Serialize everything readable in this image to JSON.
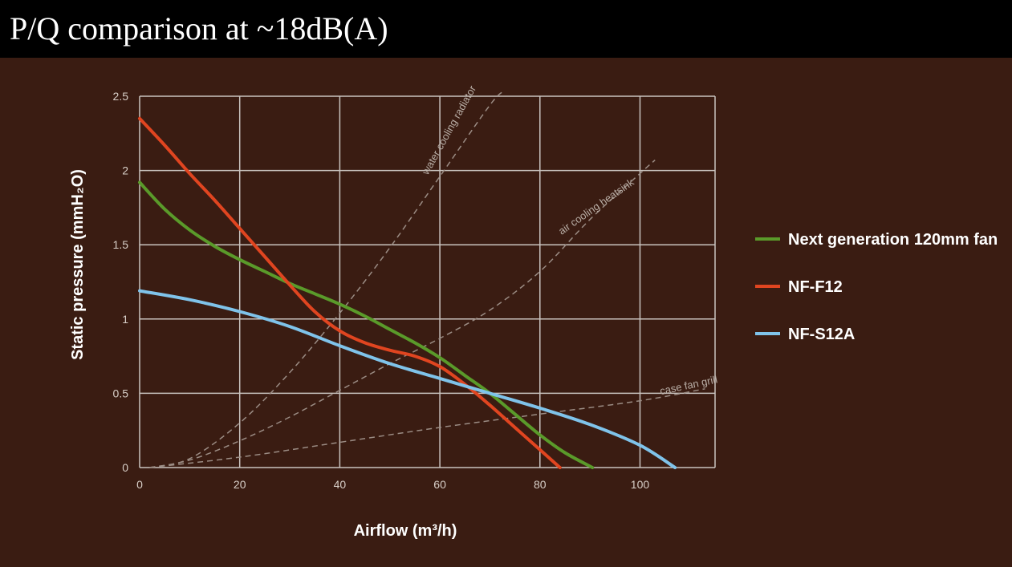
{
  "title": "P/Q comparison at ~18dB(A)",
  "colors": {
    "background": "#3a1c12",
    "title_bar": "#000000",
    "grid": "#c9c3bf",
    "system_curve": "#9b8c84"
  },
  "chart_data": {
    "type": "line",
    "title": "",
    "xlabel": "Airflow (m³/h)",
    "ylabel": "Static pressure (mmH₂O)",
    "xlim": [
      0,
      115
    ],
    "ylim": [
      0,
      2.5
    ],
    "x_ticks": [
      0,
      20,
      40,
      60,
      80,
      100
    ],
    "y_ticks": [
      0,
      0.5,
      1,
      1.5,
      2,
      2.5
    ],
    "x_tick_labels": [
      "0",
      "20",
      "40",
      "60",
      "80",
      "100"
    ],
    "y_tick_labels": [
      "0",
      "0.5",
      "1",
      "1.5",
      "2",
      "2.5"
    ],
    "grid": true,
    "legend_position": "right",
    "series": [
      {
        "name": "Next generation 120mm fan",
        "color": "#5a9a2a",
        "points": [
          [
            0,
            1.92
          ],
          [
            5,
            1.74
          ],
          [
            10,
            1.6
          ],
          [
            15,
            1.49
          ],
          [
            20,
            1.4
          ],
          [
            25,
            1.32
          ],
          [
            30,
            1.24
          ],
          [
            35,
            1.17
          ],
          [
            40,
            1.1
          ],
          [
            45,
            1.02
          ],
          [
            50,
            0.93
          ],
          [
            55,
            0.84
          ],
          [
            60,
            0.74
          ],
          [
            65,
            0.62
          ],
          [
            70,
            0.5
          ],
          [
            75,
            0.36
          ],
          [
            80,
            0.22
          ],
          [
            85,
            0.1
          ],
          [
            90.5,
            0
          ]
        ]
      },
      {
        "name": "NF-F12",
        "color": "#e04520",
        "points": [
          [
            0,
            2.35
          ],
          [
            5,
            2.17
          ],
          [
            10,
            1.98
          ],
          [
            15,
            1.8
          ],
          [
            20,
            1.61
          ],
          [
            25,
            1.42
          ],
          [
            30,
            1.23
          ],
          [
            35,
            1.05
          ],
          [
            40,
            0.92
          ],
          [
            45,
            0.84
          ],
          [
            50,
            0.79
          ],
          [
            55,
            0.75
          ],
          [
            60,
            0.68
          ],
          [
            65,
            0.56
          ],
          [
            70,
            0.42
          ],
          [
            75,
            0.27
          ],
          [
            80,
            0.12
          ],
          [
            84,
            0
          ]
        ]
      },
      {
        "name": "NF-S12A",
        "color": "#7fc3ea",
        "points": [
          [
            0,
            1.19
          ],
          [
            10,
            1.13
          ],
          [
            20,
            1.05
          ],
          [
            30,
            0.95
          ],
          [
            40,
            0.82
          ],
          [
            50,
            0.7
          ],
          [
            60,
            0.6
          ],
          [
            70,
            0.5
          ],
          [
            80,
            0.4
          ],
          [
            90,
            0.29
          ],
          [
            100,
            0.15
          ],
          [
            107,
            0
          ]
        ]
      }
    ],
    "system_curves": [
      {
        "name": "water cooling radiator",
        "points": [
          [
            2,
            0
          ],
          [
            10,
            0.06
          ],
          [
            20,
            0.3
          ],
          [
            30,
            0.64
          ],
          [
            40,
            1.04
          ],
          [
            50,
            1.48
          ],
          [
            60,
            1.96
          ],
          [
            70,
            2.44
          ],
          [
            73,
            2.54
          ]
        ]
      },
      {
        "name": "air cooling heatsink",
        "points": [
          [
            2,
            0
          ],
          [
            10,
            0.05
          ],
          [
            20,
            0.18
          ],
          [
            30,
            0.34
          ],
          [
            40,
            0.52
          ],
          [
            50,
            0.7
          ],
          [
            60,
            0.87
          ],
          [
            70,
            1.06
          ],
          [
            80,
            1.32
          ],
          [
            90,
            1.67
          ],
          [
            100,
            1.98
          ],
          [
            103,
            2.07
          ]
        ]
      },
      {
        "name": "case fan grill",
        "points": [
          [
            2,
            0
          ],
          [
            20,
            0.07
          ],
          [
            40,
            0.17
          ],
          [
            60,
            0.27
          ],
          [
            80,
            0.36
          ],
          [
            100,
            0.45
          ],
          [
            113,
            0.53
          ]
        ]
      }
    ]
  }
}
